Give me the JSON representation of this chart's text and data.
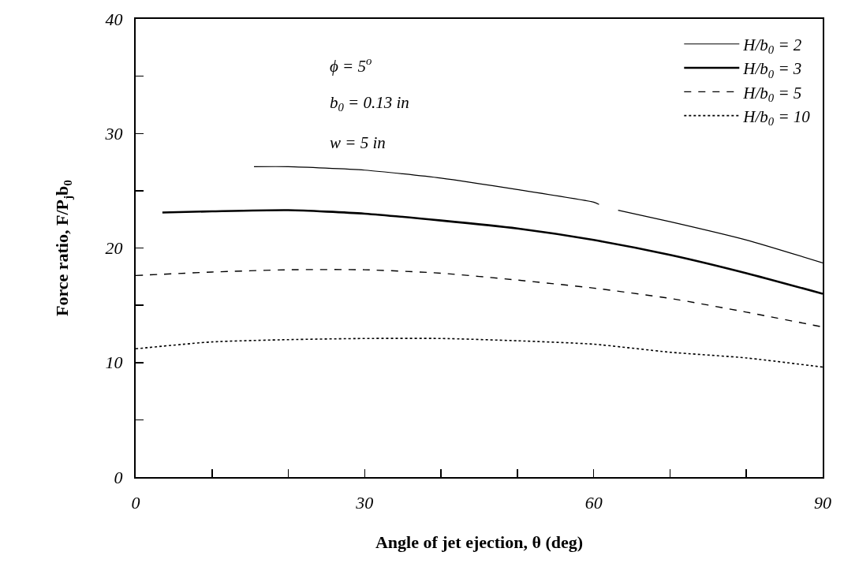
{
  "chart_data": {
    "type": "line",
    "xlabel": "Angle of jet ejection, θ (deg)",
    "ylabel": "Force ratio, F/P$_{j}$b$_{0}$",
    "xlim": [
      0,
      90
    ],
    "xticks": [
      0,
      {
        "value": 10,
        "label": null
      },
      {
        "value": 20,
        "label": null
      },
      30,
      {
        "value": 40,
        "label": null
      },
      {
        "value": 50,
        "label": null
      },
      60,
      {
        "value": 70,
        "label": null
      },
      {
        "value": 80,
        "label": null
      },
      90
    ],
    "ylim": [
      0,
      40
    ],
    "yticks": [
      0,
      {
        "value": 5,
        "label": null
      },
      10,
      {
        "value": 15,
        "label": null
      },
      20,
      {
        "value": 25,
        "label": null
      },
      30,
      {
        "value": 35,
        "label": null
      },
      40
    ],
    "grid": false,
    "legend": "top right",
    "marker": "none",
    "annotations": [
      "ϕ = 5$^{o}$",
      "b$_{0}$ = 0.13 in",
      "w = 5 in"
    ],
    "series": [
      {
        "name": "H/b$_{0}$ = 2",
        "color": "#000000",
        "line_style": "solid",
        "x": [
          15.5,
          20,
          30,
          40,
          50,
          60,
          60.7,
          62,
          63.2,
          70,
          80,
          90
        ],
        "values": [
          27.1,
          27.1,
          26.8,
          26.1,
          25.1,
          24.0,
          23.8,
          null,
          23.3,
          22.3,
          20.7,
          18.7
        ]
      },
      {
        "name": "H/b$_{0}$ = 3",
        "color": "#000000",
        "line_style": "solid",
        "x": [
          3.5,
          10,
          20,
          30,
          40,
          50,
          60,
          70,
          80,
          90
        ],
        "values": [
          23.1,
          23.2,
          23.3,
          23.0,
          22.4,
          21.7,
          20.7,
          19.4,
          17.8,
          16.0
        ]
      },
      {
        "name": "H/b$_{0}$ = 5",
        "color": "#000000",
        "line_style": "dashed",
        "x": [
          0,
          10,
          20,
          30,
          40,
          50,
          60,
          70,
          80,
          90
        ],
        "values": [
          17.6,
          17.9,
          18.1,
          18.1,
          17.8,
          17.2,
          16.5,
          15.6,
          14.4,
          13.1
        ]
      },
      {
        "name": "H/b$_{0}$ = 10",
        "color": "#000000",
        "line_style": "dotted",
        "x": [
          0,
          10,
          20,
          30,
          40,
          50,
          60,
          70,
          80,
          90
        ],
        "values": [
          11.2,
          11.8,
          12.0,
          12.1,
          12.1,
          11.9,
          11.6,
          10.9,
          10.4,
          9.6
        ]
      }
    ]
  }
}
